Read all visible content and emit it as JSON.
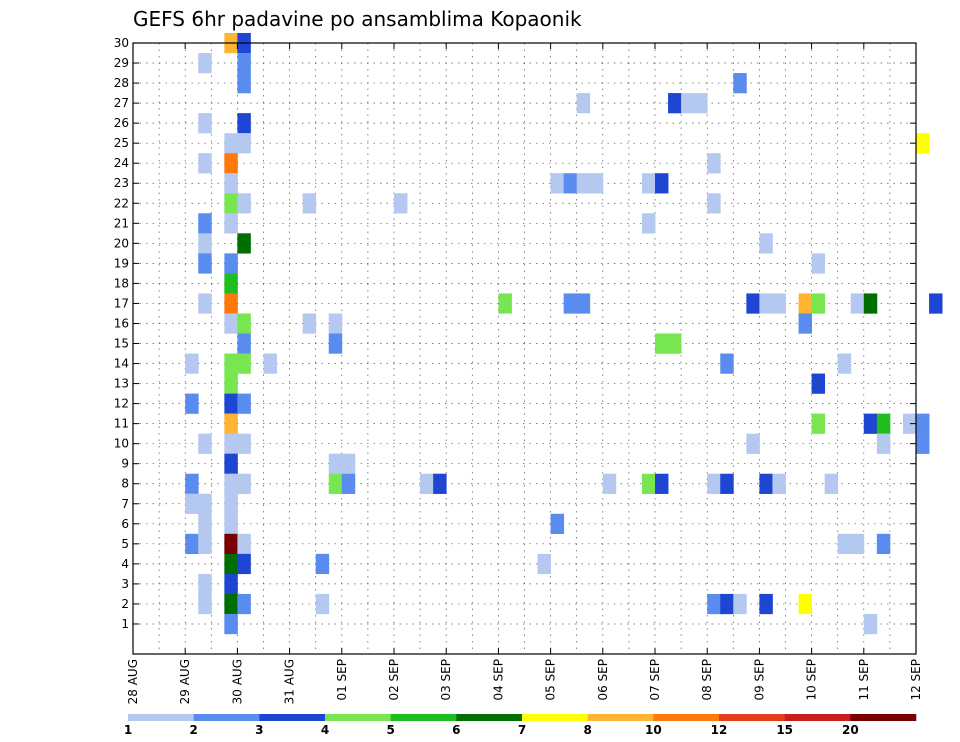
{
  "chart_data": {
    "type": "heatmap",
    "title": "GEFS 6hr padavine po ansamblima Kopaonik",
    "xlabel": "",
    "ylabel": "",
    "x_tick_labels": [
      "28 AUG",
      "29 AUG",
      "30 AUG",
      "31 AUG",
      "01 SEP",
      "02 SEP",
      "03 SEP",
      "04 SEP",
      "05 SEP",
      "06 SEP",
      "07 SEP",
      "08 SEP",
      "09 SEP",
      "10 SEP",
      "11 SEP",
      "12 SEP"
    ],
    "y_tick_labels": [
      "1",
      "2",
      "3",
      "4",
      "5",
      "6",
      "7",
      "8",
      "9",
      "10",
      "11",
      "12",
      "13",
      "14",
      "15",
      "16",
      "17",
      "18",
      "19",
      "20",
      "21",
      "22",
      "23",
      "24",
      "25",
      "26",
      "27",
      "28",
      "29",
      "30"
    ],
    "x_unit": "6-hour step (0 = 28 AUG 00Z)",
    "y_range": [
      0,
      30
    ],
    "grid": true,
    "colorbar": {
      "labels": [
        "1",
        "2",
        "3",
        "4",
        "5",
        "6",
        "7",
        "8",
        "10",
        "12",
        "15",
        "20"
      ],
      "colors": [
        "#b4c8f0",
        "#5a8cf0",
        "#1e46d2",
        "#78e650",
        "#1ebe1e",
        "#006e00",
        "#ffff00",
        "#ffb432",
        "#ff780a",
        "#e63c1e",
        "#c81e1e",
        "#780000"
      ]
    },
    "cells": [
      [
        7,
        30,
        "#ffb432"
      ],
      [
        8,
        30,
        "#1e46d2"
      ],
      [
        5,
        29,
        "#b4c8f0"
      ],
      [
        8,
        29,
        "#5a8cf0"
      ],
      [
        8,
        28,
        "#5a8cf0"
      ],
      [
        46,
        28,
        "#5a8cf0"
      ],
      [
        34,
        27,
        "#b4c8f0"
      ],
      [
        41,
        27,
        "#1e46d2"
      ],
      [
        42,
        27,
        "#b4c8f0"
      ],
      [
        43,
        27,
        "#b4c8f0"
      ],
      [
        5,
        26,
        "#b4c8f0"
      ],
      [
        8,
        26,
        "#1e46d2"
      ],
      [
        7,
        25,
        "#b4c8f0"
      ],
      [
        8,
        25,
        "#b4c8f0"
      ],
      [
        60,
        25,
        "#ffff00"
      ],
      [
        5,
        24,
        "#b4c8f0"
      ],
      [
        7,
        24,
        "#ff780a"
      ],
      [
        44,
        24,
        "#b4c8f0"
      ],
      [
        7,
        23,
        "#b4c8f0"
      ],
      [
        32,
        23,
        "#b4c8f0"
      ],
      [
        33,
        23,
        "#5a8cf0"
      ],
      [
        34,
        23,
        "#b4c8f0"
      ],
      [
        35,
        23,
        "#b4c8f0"
      ],
      [
        39,
        23,
        "#b4c8f0"
      ],
      [
        40,
        23,
        "#1e46d2"
      ],
      [
        7,
        22,
        "#78e650"
      ],
      [
        8,
        22,
        "#b4c8f0"
      ],
      [
        13,
        22,
        "#b4c8f0"
      ],
      [
        20,
        22,
        "#b4c8f0"
      ],
      [
        44,
        22,
        "#b4c8f0"
      ],
      [
        5,
        21,
        "#5a8cf0"
      ],
      [
        7,
        21,
        "#b4c8f0"
      ],
      [
        39,
        21,
        "#b4c8f0"
      ],
      [
        5,
        20,
        "#b4c8f0"
      ],
      [
        8,
        20,
        "#006e00"
      ],
      [
        48,
        20,
        "#b4c8f0"
      ],
      [
        5,
        19,
        "#5a8cf0"
      ],
      [
        7,
        19,
        "#5a8cf0"
      ],
      [
        52,
        19,
        "#b4c8f0"
      ],
      [
        7,
        18,
        "#1ebe1e"
      ],
      [
        5,
        17,
        "#b4c8f0"
      ],
      [
        7,
        17,
        "#ff780a"
      ],
      [
        28,
        17,
        "#78e650"
      ],
      [
        33,
        17,
        "#5a8cf0"
      ],
      [
        34,
        17,
        "#5a8cf0"
      ],
      [
        47,
        17,
        "#1e46d2"
      ],
      [
        48,
        17,
        "#b4c8f0"
      ],
      [
        49,
        17,
        "#b4c8f0"
      ],
      [
        51,
        17,
        "#ffb432"
      ],
      [
        52,
        17,
        "#78e650"
      ],
      [
        55,
        17,
        "#b4c8f0"
      ],
      [
        56,
        17,
        "#006e00"
      ],
      [
        61,
        17,
        "#1e46d2"
      ],
      [
        7,
        16,
        "#b4c8f0"
      ],
      [
        8,
        16,
        "#78e650"
      ],
      [
        13,
        16,
        "#b4c8f0"
      ],
      [
        15,
        16,
        "#b4c8f0"
      ],
      [
        51,
        16,
        "#5a8cf0"
      ],
      [
        8,
        15,
        "#5a8cf0"
      ],
      [
        15,
        15,
        "#5a8cf0"
      ],
      [
        40,
        15,
        "#78e650"
      ],
      [
        41,
        15,
        "#78e650"
      ],
      [
        7,
        14,
        "#78e650"
      ],
      [
        8,
        14,
        "#78e650"
      ],
      [
        4,
        14,
        "#b4c8f0"
      ],
      [
        10,
        14,
        "#b4c8f0"
      ],
      [
        45,
        14,
        "#5a8cf0"
      ],
      [
        54,
        14,
        "#b4c8f0"
      ],
      [
        7,
        13,
        "#78e650"
      ],
      [
        52,
        13,
        "#1e46d2"
      ],
      [
        4,
        12,
        "#5a8cf0"
      ],
      [
        7,
        12,
        "#1e46d2"
      ],
      [
        8,
        12,
        "#5a8cf0"
      ],
      [
        7,
        11,
        "#ffb432"
      ],
      [
        52,
        11,
        "#78e650"
      ],
      [
        56,
        11,
        "#1e46d2"
      ],
      [
        57,
        11,
        "#1ebe1e"
      ],
      [
        59,
        11,
        "#b4c8f0"
      ],
      [
        60,
        11,
        "#5a8cf0"
      ],
      [
        5,
        10,
        "#b4c8f0"
      ],
      [
        7,
        10,
        "#b4c8f0"
      ],
      [
        8,
        10,
        "#b4c8f0"
      ],
      [
        47,
        10,
        "#b4c8f0"
      ],
      [
        57,
        10,
        "#b4c8f0"
      ],
      [
        60,
        10,
        "#5a8cf0"
      ],
      [
        7,
        9,
        "#1e46d2"
      ],
      [
        15,
        9,
        "#b4c8f0"
      ],
      [
        16,
        9,
        "#b4c8f0"
      ],
      [
        4,
        8,
        "#5a8cf0"
      ],
      [
        7,
        8,
        "#b4c8f0"
      ],
      [
        8,
        8,
        "#b4c8f0"
      ],
      [
        15,
        8,
        "#78e650"
      ],
      [
        16,
        8,
        "#5a8cf0"
      ],
      [
        22,
        8,
        "#b4c8f0"
      ],
      [
        23,
        8,
        "#1e46d2"
      ],
      [
        36,
        8,
        "#b4c8f0"
      ],
      [
        39,
        8,
        "#78e650"
      ],
      [
        40,
        8,
        "#1e46d2"
      ],
      [
        44,
        8,
        "#b4c8f0"
      ],
      [
        45,
        8,
        "#1e46d2"
      ],
      [
        48,
        8,
        "#1e46d2"
      ],
      [
        49,
        8,
        "#b4c8f0"
      ],
      [
        53,
        8,
        "#b4c8f0"
      ],
      [
        4,
        7,
        "#b4c8f0"
      ],
      [
        5,
        7,
        "#b4c8f0"
      ],
      [
        7,
        7,
        "#b4c8f0"
      ],
      [
        5,
        6,
        "#b4c8f0"
      ],
      [
        7,
        6,
        "#b4c8f0"
      ],
      [
        32,
        6,
        "#5a8cf0"
      ],
      [
        4,
        5,
        "#5a8cf0"
      ],
      [
        5,
        5,
        "#b4c8f0"
      ],
      [
        7,
        5,
        "#780000"
      ],
      [
        8,
        5,
        "#b4c8f0"
      ],
      [
        54,
        5,
        "#b4c8f0"
      ],
      [
        55,
        5,
        "#b4c8f0"
      ],
      [
        57,
        5,
        "#5a8cf0"
      ],
      [
        7,
        4,
        "#006e00"
      ],
      [
        8,
        4,
        "#1e46d2"
      ],
      [
        14,
        4,
        "#5a8cf0"
      ],
      [
        31,
        4,
        "#b4c8f0"
      ],
      [
        5,
        3,
        "#b4c8f0"
      ],
      [
        7,
        3,
        "#1e46d2"
      ],
      [
        5,
        2,
        "#b4c8f0"
      ],
      [
        7,
        2,
        "#006e00"
      ],
      [
        8,
        2,
        "#5a8cf0"
      ],
      [
        14,
        2,
        "#b4c8f0"
      ],
      [
        44,
        2,
        "#5a8cf0"
      ],
      [
        45,
        2,
        "#1e46d2"
      ],
      [
        46,
        2,
        "#b4c8f0"
      ],
      [
        48,
        2,
        "#1e46d2"
      ],
      [
        51,
        2,
        "#ffff00"
      ],
      [
        7,
        1,
        "#5a8cf0"
      ],
      [
        56,
        1,
        "#b4c8f0"
      ]
    ]
  }
}
